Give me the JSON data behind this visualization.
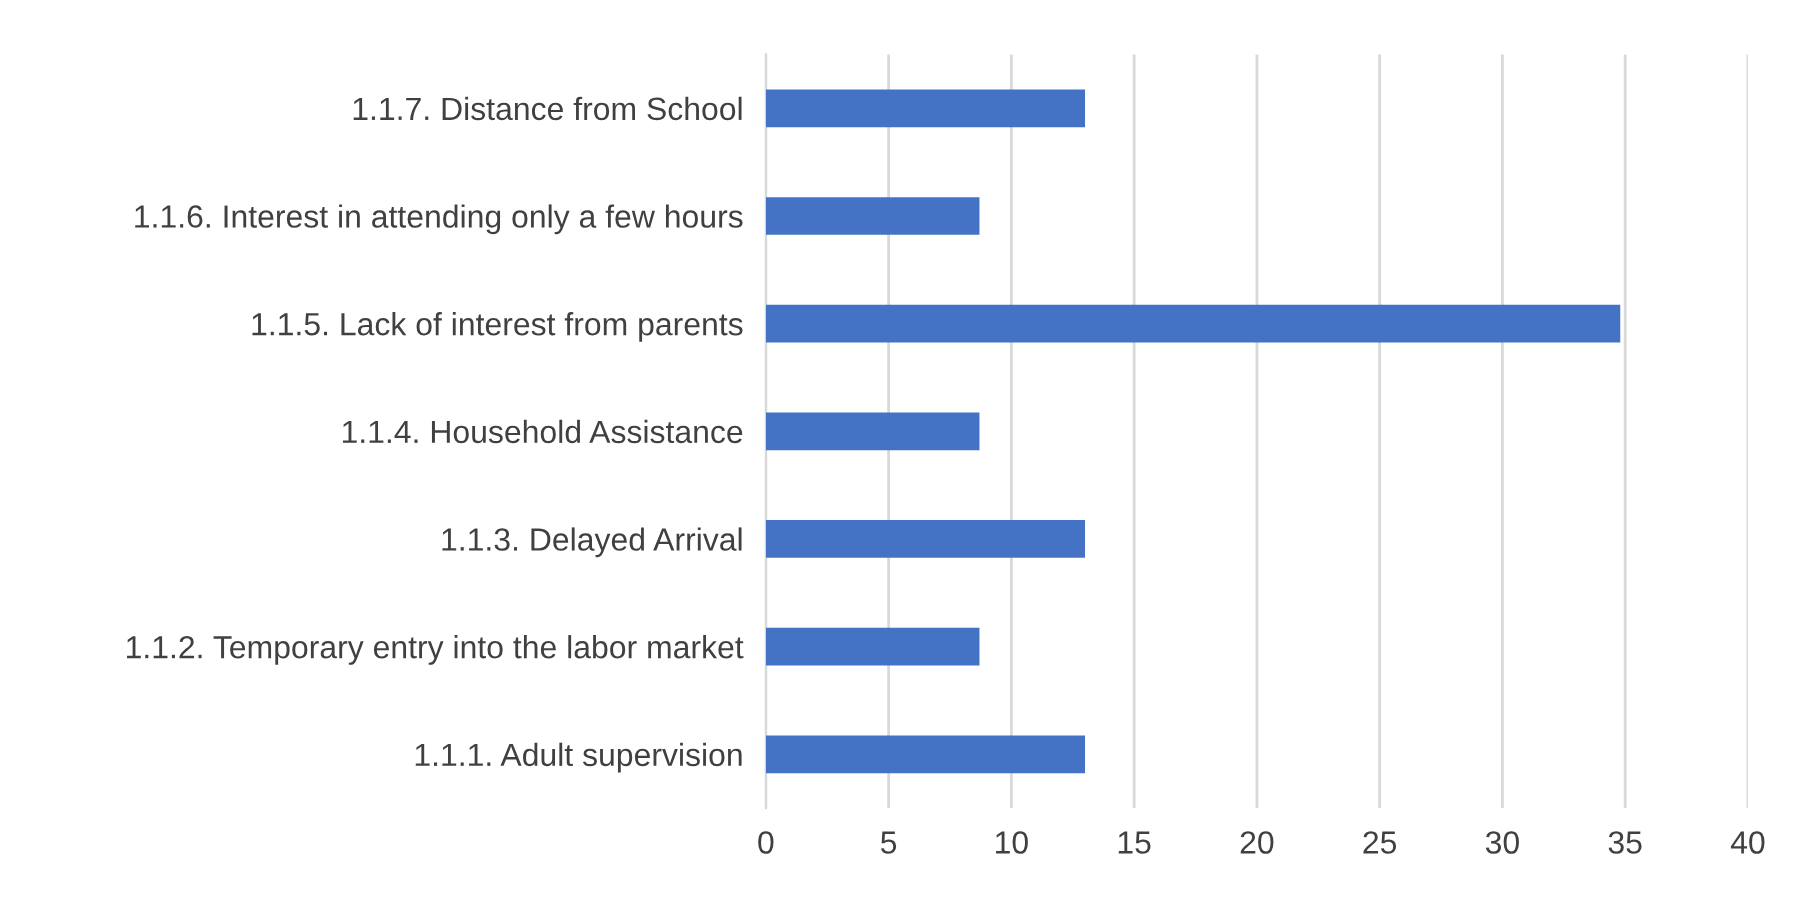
{
  "chart_data": {
    "type": "bar",
    "orientation": "horizontal",
    "categories": [
      "1.1.7. Distance from School",
      "1.1.6. Interest in attending only a few hours",
      "1.1.5. Lack of interest from parents",
      "1.1.4. Household Assistance",
      "1.1.3. Delayed Arrival",
      "1.1.2. Temporary entry into the labor market",
      "1.1.1. Adult supervision"
    ],
    "values": [
      13,
      8.7,
      34.8,
      8.7,
      13,
      8.7,
      13
    ],
    "color": "#4472c4",
    "xlim": [
      0,
      40
    ],
    "xticks": [
      0,
      5,
      10,
      15,
      20,
      25,
      30,
      35,
      40
    ],
    "grid": "x",
    "legend": false
  }
}
